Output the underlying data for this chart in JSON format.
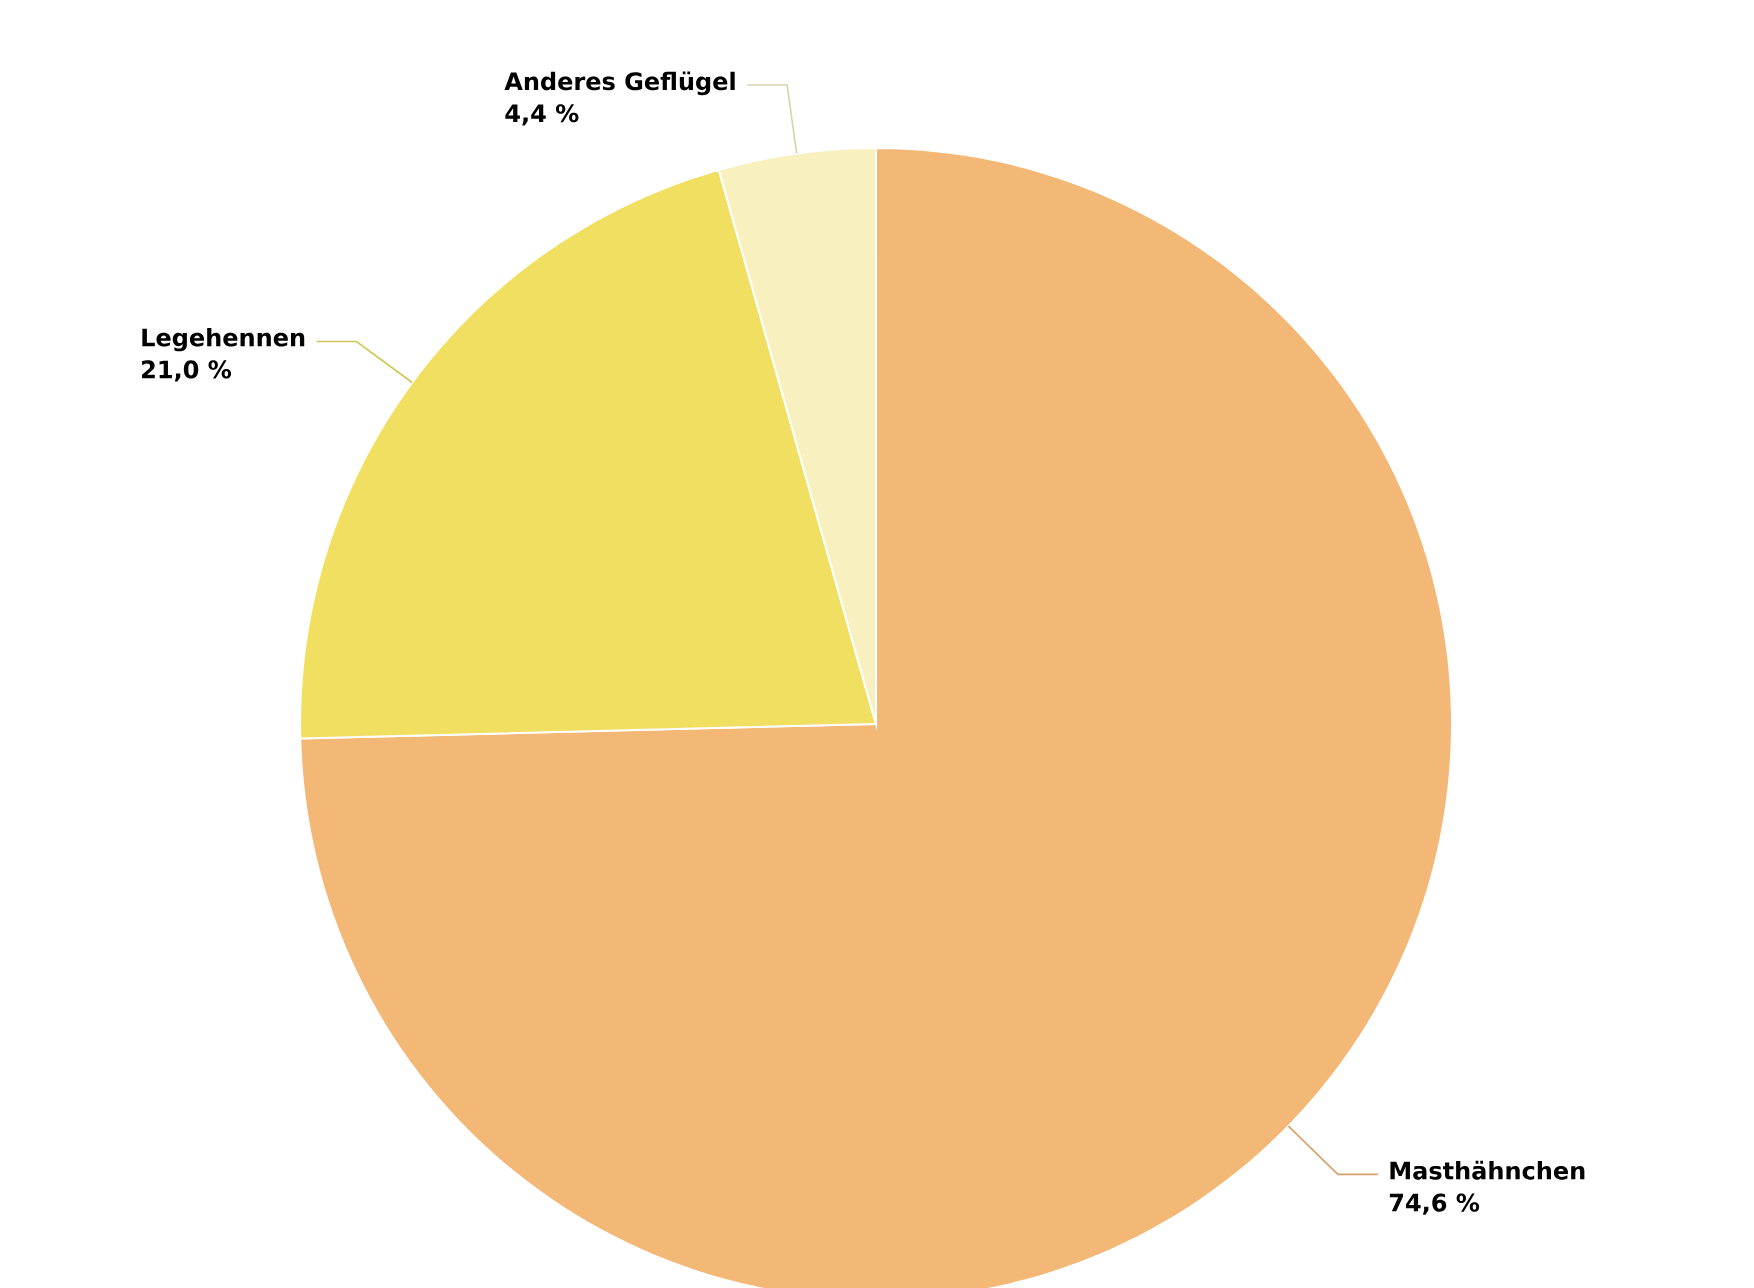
{
  "chart_data": {
    "type": "pie",
    "categories": [
      "Masthähnchen",
      "Legehennen",
      "Anderes Geflügel"
    ],
    "values": [
      74.6,
      21.0,
      4.4
    ],
    "value_labels": [
      "74,6 %",
      "21,0 %",
      "4,4 %"
    ],
    "colors": [
      "#f3b776",
      "#f1df62",
      "#f8f0be"
    ]
  }
}
